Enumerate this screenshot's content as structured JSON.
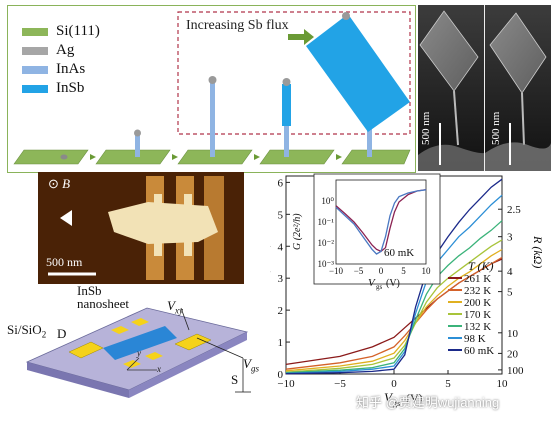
{
  "top_panel": {
    "legend": [
      {
        "label": "Si(111)",
        "color": "#8db659"
      },
      {
        "label": "Ag",
        "color": "#a6a6a6"
      },
      {
        "label": "InAs",
        "color": "#8fb4e3"
      },
      {
        "label": "InSb",
        "color": "#22a3e6"
      }
    ],
    "flux_label": "Increasing Sb flux"
  },
  "sem_panel": {
    "scale_left": "500 nm",
    "scale_right": "500 nm"
  },
  "afm_panel": {
    "field_symbol": "⊙",
    "field_label": "B",
    "scale": "500 nm"
  },
  "device_panel": {
    "nanosheet_label_line1": "InSb",
    "nanosheet_label_line2": "nanosheet",
    "substrate_label": "Si/SiO",
    "substrate_sub": "2",
    "label_D": "D",
    "label_S": "S",
    "label_Vxy": "V",
    "label_Vxy_sub": "xy",
    "label_Vgs": "V",
    "label_Vgs_sub": "gs",
    "axis_x": "x",
    "axis_y": "y"
  },
  "chart_data": [
    {
      "type": "line",
      "xlabel": "V",
      "xlabel_sub": "gs",
      "xlabel_unit": "(V)",
      "ylabel": "G (2e²/h)",
      "ylabel_right": "R (kΩ)",
      "xlim": [
        -10,
        10
      ],
      "ylim": [
        0,
        6.2
      ],
      "x_ticks": [
        "-10",
        "-5",
        "0",
        "5",
        "10"
      ],
      "y_ticks": [
        "0",
        "1",
        "2",
        "3",
        "4",
        "5",
        "6"
      ],
      "right_ticks": [
        "2.5",
        "3",
        "4",
        "5",
        "10",
        "20",
        "100"
      ],
      "right_tick_values_G": [
        5.16,
        4.3,
        3.22,
        2.58,
        1.29,
        0.645,
        0.129
      ],
      "legend_title": "T (K)",
      "x": [
        -10,
        -5,
        -2,
        0,
        1,
        2,
        3,
        4,
        5,
        6,
        7,
        8,
        9,
        10
      ],
      "series": [
        {
          "name": "261 K",
          "color": "#8b1a1a",
          "values": [
            0.3,
            0.55,
            0.85,
            1.15,
            1.45,
            1.75,
            2.05,
            2.35,
            2.6,
            2.85,
            3.05,
            3.25,
            3.45,
            3.6
          ]
        },
        {
          "name": "232 K",
          "color": "#d4622a",
          "values": [
            0.15,
            0.35,
            0.55,
            0.85,
            1.2,
            1.6,
            2.0,
            2.35,
            2.6,
            2.85,
            3.05,
            3.25,
            3.45,
            3.65
          ]
        },
        {
          "name": "200 K",
          "color": "#e0b020",
          "values": [
            0.1,
            0.25,
            0.4,
            0.65,
            1.05,
            1.6,
            2.1,
            2.45,
            2.75,
            3.0,
            3.2,
            3.45,
            3.7,
            3.9
          ]
        },
        {
          "name": "170 K",
          "color": "#a8c43a",
          "values": [
            0.06,
            0.18,
            0.3,
            0.5,
            0.9,
            1.6,
            2.25,
            2.7,
            3.0,
            3.25,
            3.5,
            3.75,
            4.0,
            4.2
          ]
        },
        {
          "name": "132 K",
          "color": "#3bb37a",
          "values": [
            0.04,
            0.12,
            0.2,
            0.35,
            0.8,
            1.7,
            2.5,
            3.05,
            3.4,
            3.7,
            3.95,
            4.25,
            4.5,
            4.8
          ]
        },
        {
          "name": "98 K",
          "color": "#2c8fd6",
          "values": [
            0.02,
            0.08,
            0.15,
            0.25,
            0.7,
            1.9,
            2.9,
            3.5,
            3.9,
            4.3,
            4.6,
            4.95,
            5.3,
            5.6
          ]
        },
        {
          "name": "60 mK",
          "color": "#1b2a8a",
          "values": [
            0.01,
            0.04,
            0.08,
            0.15,
            0.6,
            2.1,
            3.2,
            3.8,
            4.3,
            4.75,
            5.15,
            5.5,
            5.85,
            6.1
          ]
        }
      ]
    },
    {
      "type": "line",
      "title": "",
      "xlabel": "V",
      "xlabel_sub": "gs",
      "xlabel_unit": "(V)",
      "ylabel": "G (2e²/h)",
      "ylog": true,
      "xlim": [
        -10,
        10
      ],
      "ylim_exp": [
        -3,
        1
      ],
      "x_ticks": [
        "-10",
        "-5",
        "0",
        "5",
        "10"
      ],
      "y_ticks": [
        "10⁰",
        "10⁻¹",
        "10⁻²",
        "10⁻³"
      ],
      "annotation": "60 mK",
      "x": [
        -10,
        -8,
        -6,
        -4,
        -2,
        -1,
        0,
        1,
        2,
        3,
        4,
        6,
        8,
        10
      ],
      "series": [
        {
          "color": "#8b2252",
          "values": [
            0.6,
            0.25,
            0.1,
            0.03,
            0.008,
            0.005,
            0.004,
            0.006,
            0.05,
            0.3,
            0.9,
            2.0,
            3.0,
            3.5
          ]
        },
        {
          "color": "#4a78c2",
          "values": [
            0.5,
            0.2,
            0.08,
            0.02,
            0.005,
            0.003,
            0.004,
            0.02,
            0.2,
            0.8,
            1.6,
            2.4,
            3.0,
            3.4
          ]
        }
      ]
    }
  ],
  "watermark": "知乎 @贾建明wujianning"
}
